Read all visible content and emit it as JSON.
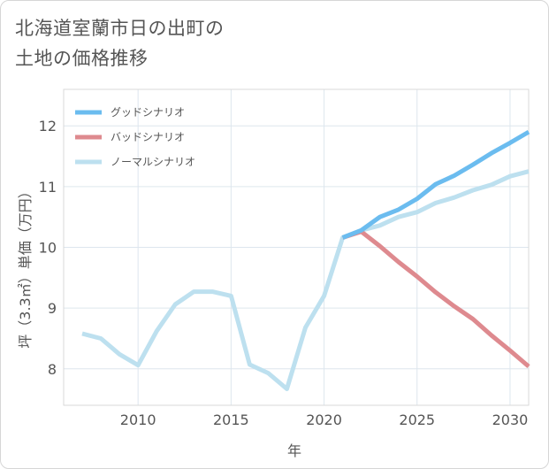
{
  "chart_data": {
    "type": "line",
    "title_lines": [
      "北海道室蘭市日の出町の",
      "土地の価格推移"
    ],
    "xlabel": "年",
    "ylabel": "坪（3.3㎡）単価（万円）",
    "xlim": [
      2006,
      2031
    ],
    "ylim": [
      7.4,
      12.6
    ],
    "xticks": [
      2010,
      2015,
      2020,
      2025,
      2030
    ],
    "yticks": [
      8,
      9,
      10,
      11,
      12
    ],
    "grid": true,
    "legend_position": "top-left",
    "series": [
      {
        "name": "グッドシナリオ",
        "color": "#6bbcef",
        "x": [
          2021,
          2022,
          2023,
          2024,
          2025,
          2026,
          2027,
          2028,
          2029,
          2030,
          2031
        ],
        "y": [
          10.16,
          10.28,
          10.5,
          10.62,
          10.8,
          11.04,
          11.18,
          11.36,
          11.55,
          11.72,
          11.9
        ]
      },
      {
        "name": "バッドシナリオ",
        "color": "#de8a8f",
        "x": [
          2021,
          2022,
          2023,
          2024,
          2025,
          2026,
          2027,
          2028,
          2029,
          2030,
          2031
        ],
        "y": [
          10.16,
          10.26,
          10.02,
          9.76,
          9.52,
          9.26,
          9.03,
          8.82,
          8.55,
          8.3,
          8.04
        ]
      },
      {
        "name": "ノーマルシナリオ",
        "color": "#bde0ef",
        "x": [
          2007,
          2008,
          2009,
          2010,
          2011,
          2012,
          2013,
          2014,
          2015,
          2016,
          2017,
          2018,
          2019,
          2020,
          2021,
          2022,
          2023,
          2024,
          2025,
          2026,
          2027,
          2028,
          2029,
          2030,
          2031
        ],
        "y": [
          8.58,
          8.5,
          8.24,
          8.06,
          8.62,
          9.06,
          9.27,
          9.27,
          9.2,
          8.07,
          7.93,
          7.67,
          8.68,
          9.2,
          10.16,
          10.28,
          10.36,
          10.5,
          10.58,
          10.73,
          10.82,
          10.94,
          11.03,
          11.17,
          11.25
        ]
      }
    ]
  }
}
